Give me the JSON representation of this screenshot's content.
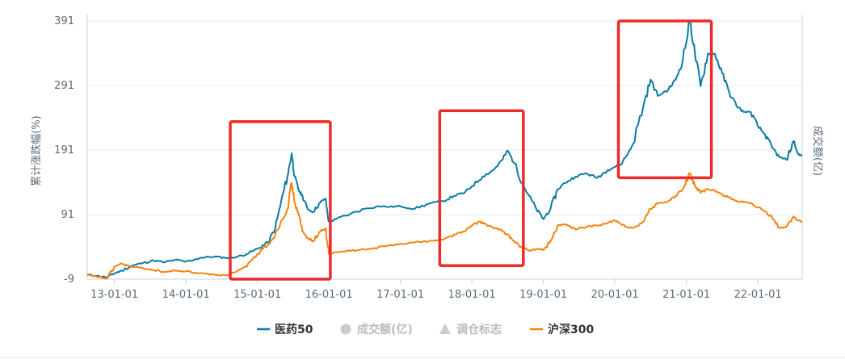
{
  "chart_data": {
    "type": "line",
    "ylabel_left": "累计涨跌幅(%)",
    "ylabel_right": "成交额(亿)",
    "y_ticks": [
      "391",
      "291",
      "191",
      "91",
      "-9"
    ],
    "y_tick_values": [
      391,
      291,
      191,
      91,
      -9
    ],
    "ylim": [
      -9,
      391
    ],
    "x_ticks": [
      "13-01-01",
      "14-01-01",
      "15-01-01",
      "16-01-01",
      "17-01-01",
      "18-01-01",
      "19-01-01",
      "20-01-01",
      "21-01-01",
      "22-01-01"
    ],
    "x_tick_years": [
      2013,
      2014,
      2015,
      2016,
      2017,
      2018,
      2019,
      2020,
      2021,
      2022
    ],
    "xlim": [
      2012.62,
      2022.62
    ],
    "grid": true,
    "legend_position": "bottom",
    "series": [
      {
        "name": "医药50",
        "color": "#0b7aa3",
        "points": [
          [
            2012.62,
            -2
          ],
          [
            2012.75,
            -4
          ],
          [
            2012.9,
            -6
          ],
          [
            2013.0,
            0
          ],
          [
            2013.1,
            4
          ],
          [
            2013.25,
            12
          ],
          [
            2013.4,
            16
          ],
          [
            2013.55,
            20
          ],
          [
            2013.7,
            17
          ],
          [
            2013.85,
            21
          ],
          [
            2014.0,
            18
          ],
          [
            2014.2,
            24
          ],
          [
            2014.4,
            26
          ],
          [
            2014.55,
            24
          ],
          [
            2014.7,
            25
          ],
          [
            2014.85,
            30
          ],
          [
            2015.0,
            38
          ],
          [
            2015.15,
            48
          ],
          [
            2015.25,
            70
          ],
          [
            2015.33,
            110
          ],
          [
            2015.42,
            150
          ],
          [
            2015.48,
            186
          ],
          [
            2015.52,
            150
          ],
          [
            2015.58,
            128
          ],
          [
            2015.63,
            120
          ],
          [
            2015.7,
            100
          ],
          [
            2015.78,
            95
          ],
          [
            2015.88,
            110
          ],
          [
            2015.95,
            116
          ],
          [
            2016.0,
            80
          ],
          [
            2016.1,
            84
          ],
          [
            2016.3,
            92
          ],
          [
            2016.5,
            100
          ],
          [
            2016.7,
            104
          ],
          [
            2016.85,
            103
          ],
          [
            2017.0,
            104
          ],
          [
            2017.2,
            100
          ],
          [
            2017.4,
            108
          ],
          [
            2017.6,
            112
          ],
          [
            2017.75,
            120
          ],
          [
            2017.9,
            125
          ],
          [
            2018.0,
            135
          ],
          [
            2018.15,
            150
          ],
          [
            2018.3,
            160
          ],
          [
            2018.42,
            175
          ],
          [
            2018.5,
            190
          ],
          [
            2018.6,
            170
          ],
          [
            2018.7,
            140
          ],
          [
            2018.8,
            120
          ],
          [
            2018.9,
            100
          ],
          [
            2019.0,
            84
          ],
          [
            2019.1,
            100
          ],
          [
            2019.2,
            130
          ],
          [
            2019.3,
            140
          ],
          [
            2019.45,
            150
          ],
          [
            2019.6,
            155
          ],
          [
            2019.75,
            148
          ],
          [
            2019.9,
            160
          ],
          [
            2020.0,
            165
          ],
          [
            2020.1,
            170
          ],
          [
            2020.25,
            200
          ],
          [
            2020.4,
            260
          ],
          [
            2020.5,
            300
          ],
          [
            2020.6,
            275
          ],
          [
            2020.75,
            285
          ],
          [
            2020.85,
            300
          ],
          [
            2020.95,
            330
          ],
          [
            2021.05,
            392
          ],
          [
            2021.12,
            340
          ],
          [
            2021.2,
            290
          ],
          [
            2021.3,
            340
          ],
          [
            2021.4,
            340
          ],
          [
            2021.5,
            310
          ],
          [
            2021.6,
            280
          ],
          [
            2021.7,
            260
          ],
          [
            2021.8,
            250
          ],
          [
            2021.9,
            250
          ],
          [
            2022.0,
            228
          ],
          [
            2022.1,
            215
          ],
          [
            2022.2,
            195
          ],
          [
            2022.3,
            180
          ],
          [
            2022.4,
            176
          ],
          [
            2022.5,
            205
          ],
          [
            2022.56,
            185
          ],
          [
            2022.62,
            182
          ]
        ]
      },
      {
        "name": "沪深300",
        "color": "#f5820f",
        "points": [
          [
            2012.62,
            -3
          ],
          [
            2012.75,
            -5
          ],
          [
            2012.9,
            -8
          ],
          [
            2013.0,
            10
          ],
          [
            2013.1,
            15
          ],
          [
            2013.25,
            10
          ],
          [
            2013.4,
            8
          ],
          [
            2013.55,
            5
          ],
          [
            2013.7,
            2
          ],
          [
            2013.85,
            4
          ],
          [
            2014.0,
            3
          ],
          [
            2014.2,
            0
          ],
          [
            2014.4,
            -2
          ],
          [
            2014.55,
            -3
          ],
          [
            2014.7,
            2
          ],
          [
            2014.85,
            10
          ],
          [
            2015.0,
            30
          ],
          [
            2015.15,
            45
          ],
          [
            2015.25,
            60
          ],
          [
            2015.33,
            80
          ],
          [
            2015.42,
            100
          ],
          [
            2015.48,
            140
          ],
          [
            2015.52,
            110
          ],
          [
            2015.58,
            90
          ],
          [
            2015.63,
            65
          ],
          [
            2015.7,
            55
          ],
          [
            2015.78,
            50
          ],
          [
            2015.88,
            65
          ],
          [
            2015.95,
            70
          ],
          [
            2016.0,
            30
          ],
          [
            2016.2,
            34
          ],
          [
            2016.4,
            36
          ],
          [
            2016.6,
            38
          ],
          [
            2016.8,
            42
          ],
          [
            2017.0,
            46
          ],
          [
            2017.2,
            48
          ],
          [
            2017.4,
            50
          ],
          [
            2017.6,
            52
          ],
          [
            2017.75,
            60
          ],
          [
            2017.9,
            65
          ],
          [
            2018.0,
            74
          ],
          [
            2018.1,
            80
          ],
          [
            2018.2,
            76
          ],
          [
            2018.3,
            70
          ],
          [
            2018.4,
            68
          ],
          [
            2018.5,
            60
          ],
          [
            2018.6,
            48
          ],
          [
            2018.7,
            40
          ],
          [
            2018.8,
            35
          ],
          [
            2018.9,
            38
          ],
          [
            2019.0,
            36
          ],
          [
            2019.1,
            50
          ],
          [
            2019.2,
            74
          ],
          [
            2019.3,
            76
          ],
          [
            2019.45,
            68
          ],
          [
            2019.6,
            72
          ],
          [
            2019.75,
            74
          ],
          [
            2019.9,
            78
          ],
          [
            2020.0,
            82
          ],
          [
            2020.1,
            75
          ],
          [
            2020.25,
            70
          ],
          [
            2020.4,
            80
          ],
          [
            2020.5,
            100
          ],
          [
            2020.6,
            108
          ],
          [
            2020.75,
            112
          ],
          [
            2020.85,
            120
          ],
          [
            2020.95,
            130
          ],
          [
            2021.05,
            155
          ],
          [
            2021.12,
            135
          ],
          [
            2021.2,
            125
          ],
          [
            2021.3,
            130
          ],
          [
            2021.4,
            128
          ],
          [
            2021.5,
            122
          ],
          [
            2021.6,
            118
          ],
          [
            2021.7,
            112
          ],
          [
            2021.8,
            110
          ],
          [
            2021.9,
            108
          ],
          [
            2022.0,
            102
          ],
          [
            2022.1,
            96
          ],
          [
            2022.2,
            86
          ],
          [
            2022.3,
            70
          ],
          [
            2022.4,
            72
          ],
          [
            2022.5,
            88
          ],
          [
            2022.56,
            82
          ],
          [
            2022.62,
            80
          ]
        ]
      }
    ],
    "highlight_boxes": [
      {
        "x": [
          2014.62,
          2016.02
        ],
        "y": [
          -9,
          235
        ]
      },
      {
        "x": [
          2017.55,
          2018.72
        ],
        "y": [
          12,
          252
        ]
      },
      {
        "x": [
          2020.05,
          2021.35
        ],
        "y": [
          148,
          391
        ]
      }
    ]
  },
  "legend": {
    "items": [
      {
        "label": "医药50",
        "color": "#0b7aa3",
        "icon": "line-marker-icon",
        "active": true
      },
      {
        "label": "成交额(亿)",
        "color": "#cccccc",
        "icon": "circle-icon",
        "active": false
      },
      {
        "label": "调仓标志",
        "color": "#cccccc",
        "icon": "triangle-icon",
        "active": false
      },
      {
        "label": "沪深300",
        "color": "#f5820f",
        "icon": "line-marker-icon",
        "active": true
      }
    ]
  }
}
